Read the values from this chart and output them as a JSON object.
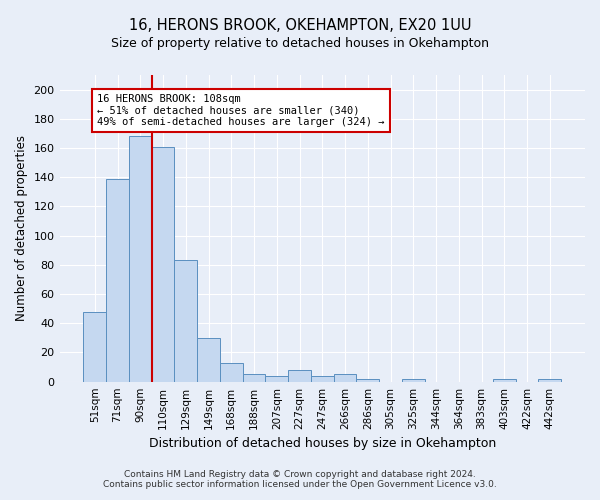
{
  "title_line1": "16, HERONS BROOK, OKEHAMPTON, EX20 1UU",
  "title_line2": "Size of property relative to detached houses in Okehampton",
  "xlabel": "Distribution of detached houses by size in Okehampton",
  "ylabel": "Number of detached properties",
  "bar_labels": [
    "51sqm",
    "71sqm",
    "90sqm",
    "110sqm",
    "129sqm",
    "149sqm",
    "168sqm",
    "188sqm",
    "207sqm",
    "227sqm",
    "247sqm",
    "266sqm",
    "286sqm",
    "305sqm",
    "325sqm",
    "344sqm",
    "364sqm",
    "383sqm",
    "403sqm",
    "422sqm",
    "442sqm"
  ],
  "bar_values": [
    48,
    139,
    168,
    161,
    83,
    30,
    13,
    5,
    4,
    8,
    4,
    5,
    2,
    0,
    2,
    0,
    0,
    0,
    2,
    0,
    2
  ],
  "bar_color": "#c5d8f0",
  "bar_edge_color": "#5a8fc0",
  "annotation_text": "16 HERONS BROOK: 108sqm\n← 51% of detached houses are smaller (340)\n49% of semi-detached houses are larger (324) →",
  "annotation_box_color": "#ffffff",
  "annotation_box_edge": "#cc0000",
  "vline_color": "#cc0000",
  "ylim": [
    0,
    210
  ],
  "yticks": [
    0,
    20,
    40,
    60,
    80,
    100,
    120,
    140,
    160,
    180,
    200
  ],
  "footer_line1": "Contains HM Land Registry data © Crown copyright and database right 2024.",
  "footer_line2": "Contains public sector information licensed under the Open Government Licence v3.0.",
  "bg_color": "#e8eef8",
  "plot_bg_color": "#e8eef8",
  "figsize": [
    6.0,
    5.0
  ],
  "dpi": 100
}
